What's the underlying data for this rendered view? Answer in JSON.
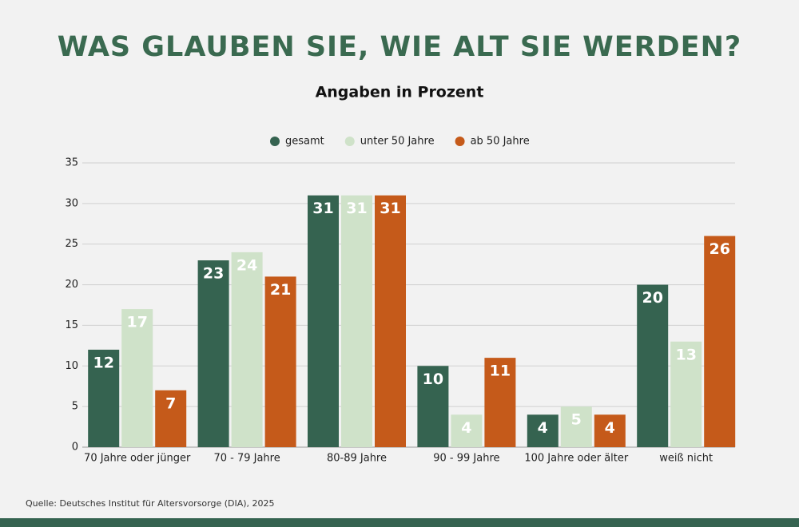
{
  "chart_data": {
    "type": "bar",
    "title": "WAS GLAUBEN SIE, WIE ALT SIE WERDEN?",
    "subtitle": "Angaben in Prozent",
    "source": "Quelle: Deutsches Institut für Altersvorsorge (DIA), 2025",
    "categories": [
      "70 Jahre oder jünger",
      "70 - 79 Jahre",
      "80-89 Jahre",
      "90 - 99 Jahre",
      "100 Jahre oder älter",
      "weiß nicht"
    ],
    "series": [
      {
        "name": "gesamt",
        "color": "#356350",
        "values": [
          12,
          23,
          31,
          10,
          4,
          20
        ]
      },
      {
        "name": "unter 50 Jahre",
        "color": "#cfe2c9",
        "values": [
          17,
          24,
          31,
          4,
          5,
          13
        ]
      },
      {
        "name": "ab 50 Jahre",
        "color": "#c55a1a",
        "values": [
          7,
          21,
          31,
          11,
          4,
          26
        ]
      }
    ],
    "ylim": [
      0,
      35
    ],
    "yticks": [
      0,
      5,
      10,
      15,
      20,
      25,
      30,
      35
    ],
    "grid": true,
    "legend": "top"
  }
}
